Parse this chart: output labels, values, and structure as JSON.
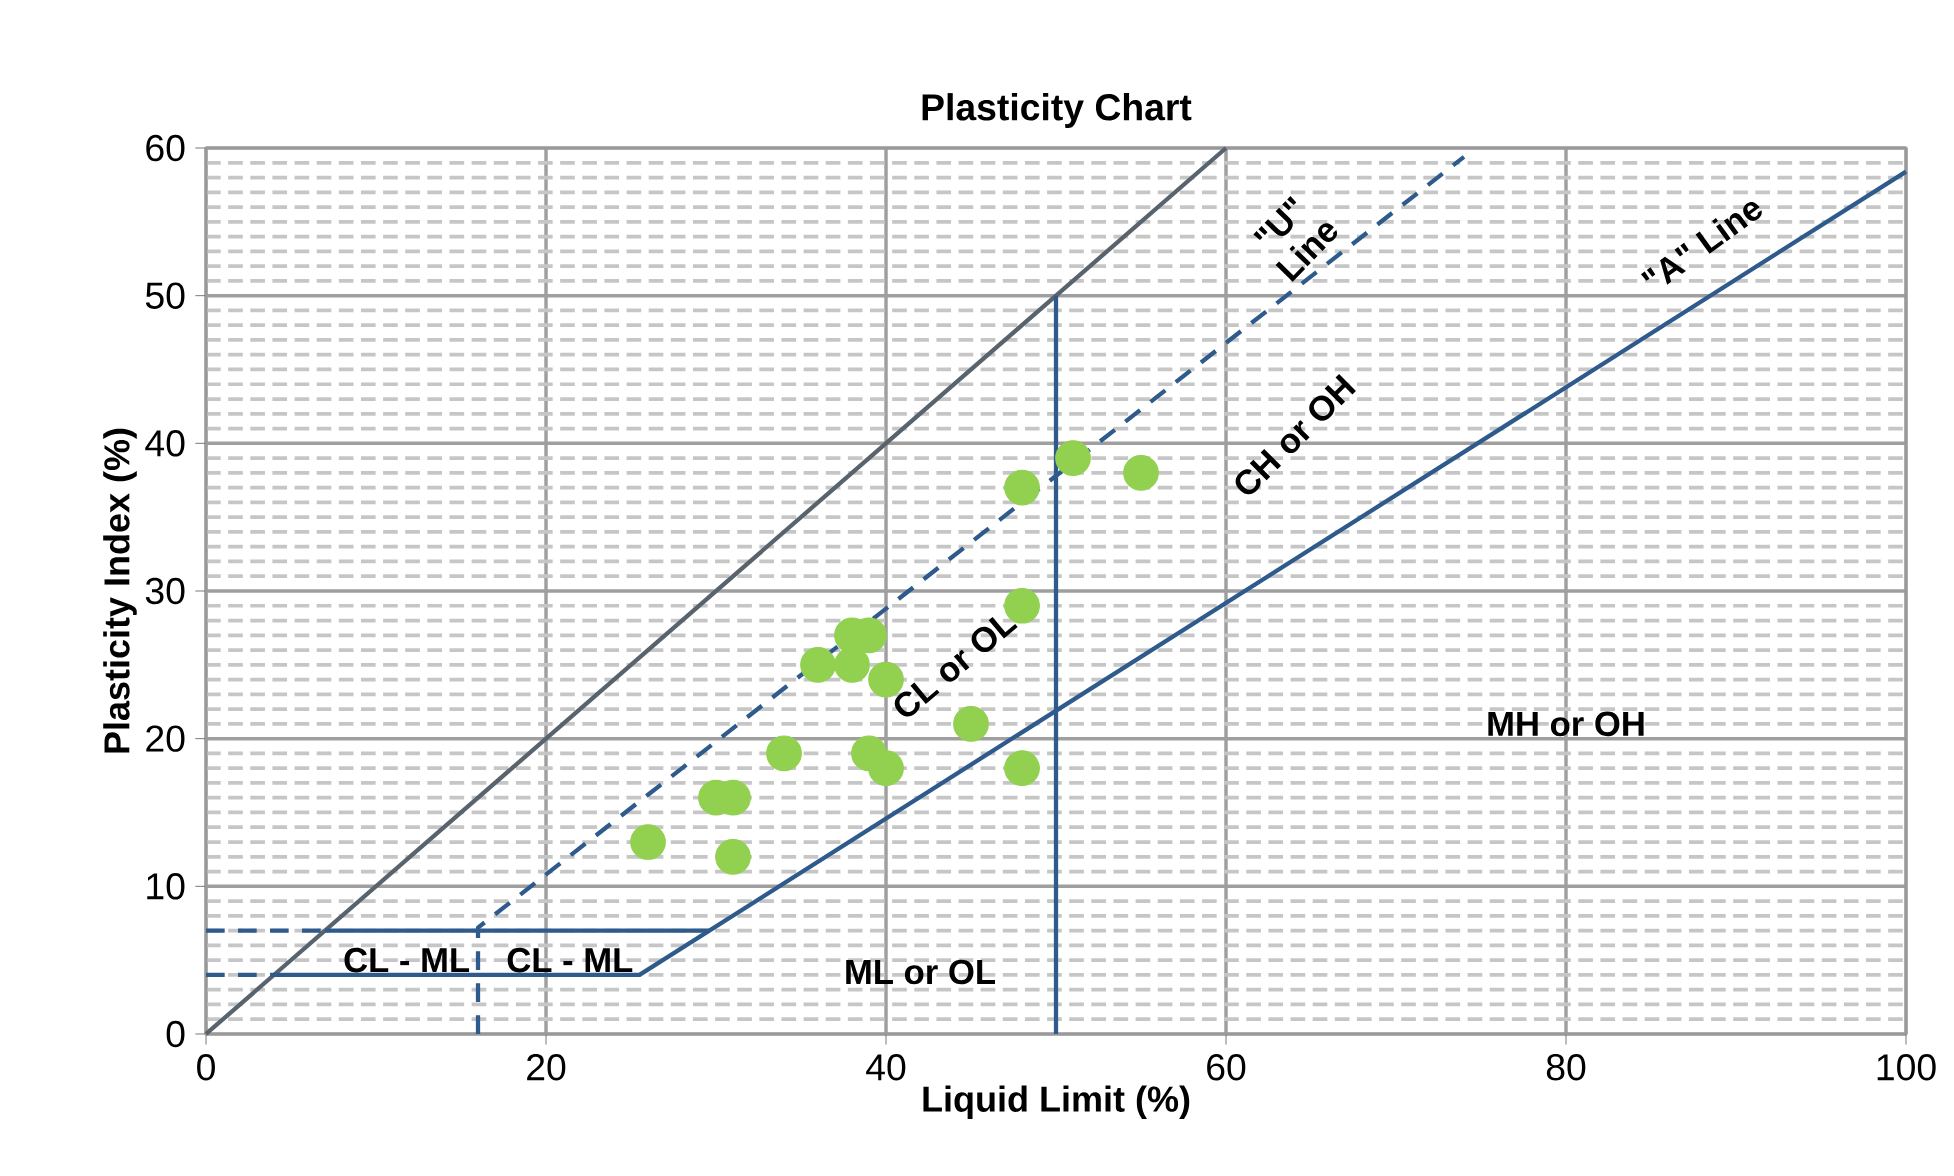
{
  "chart_data": {
    "type": "scatter",
    "title": "Plasticity Chart",
    "xlabel": "Liquid Limit (%)",
    "ylabel": "Plasticity Index (%)",
    "xlim": [
      0,
      100
    ],
    "ylim": [
      0,
      60
    ],
    "xticks": [
      0,
      20,
      40,
      60,
      80,
      100
    ],
    "yticks": [
      0,
      10,
      20,
      30,
      40,
      50,
      60
    ],
    "grid": true,
    "series": [
      {
        "type": "line",
        "color": "#59636e",
        "line_style": "solid",
        "marker": "none",
        "x": [
          0,
          60
        ],
        "values": [
          0,
          60
        ]
      },
      {
        "type": "line",
        "color": "#2e5a8c",
        "line_style": "solid",
        "marker": "none",
        "x": [
          4,
          25.5,
          100
        ],
        "values": [
          4,
          4,
          58.4
        ]
      },
      {
        "type": "line",
        "color": "#2e5a8c",
        "line_style": "dashed",
        "marker": "none",
        "x": [
          0,
          4
        ],
        "values": [
          4,
          4
        ]
      },
      {
        "type": "line",
        "color": "#2e5a8c",
        "line_style": "dashed",
        "marker": "none",
        "x": [
          0,
          7
        ],
        "values": [
          7,
          7
        ]
      },
      {
        "type": "line",
        "color": "#2e5a8c",
        "line_style": "solid",
        "marker": "none",
        "x": [
          7,
          29.6
        ],
        "values": [
          7,
          7
        ]
      },
      {
        "type": "line",
        "color": "#2e5a8c",
        "line_style": "dashed",
        "marker": "none",
        "x": [
          16,
          16,
          74
        ],
        "values": [
          0,
          7.2,
          59.4
        ]
      },
      {
        "type": "line",
        "color": "#2e5a8c",
        "line_style": "solid",
        "marker": "none",
        "x": [
          50,
          50
        ],
        "values": [
          0,
          50
        ]
      },
      {
        "color": "#92d050",
        "marker": "circle",
        "x": [
          26,
          30,
          31,
          31,
          34,
          36,
          38,
          38,
          39,
          39,
          40,
          40,
          45,
          48,
          48,
          48,
          51,
          55
        ],
        "values": [
          13,
          16,
          16,
          12,
          19,
          25,
          25,
          27,
          27,
          19,
          18,
          24,
          21,
          18,
          29,
          37,
          39,
          38
        ]
      }
    ],
    "annotations": [
      "\"U\" Line",
      "\"A\" Line",
      "CH or OH",
      "CL or OL",
      "MH or OH",
      "ML or OL",
      "CL - ML",
      "CL - ML"
    ]
  }
}
